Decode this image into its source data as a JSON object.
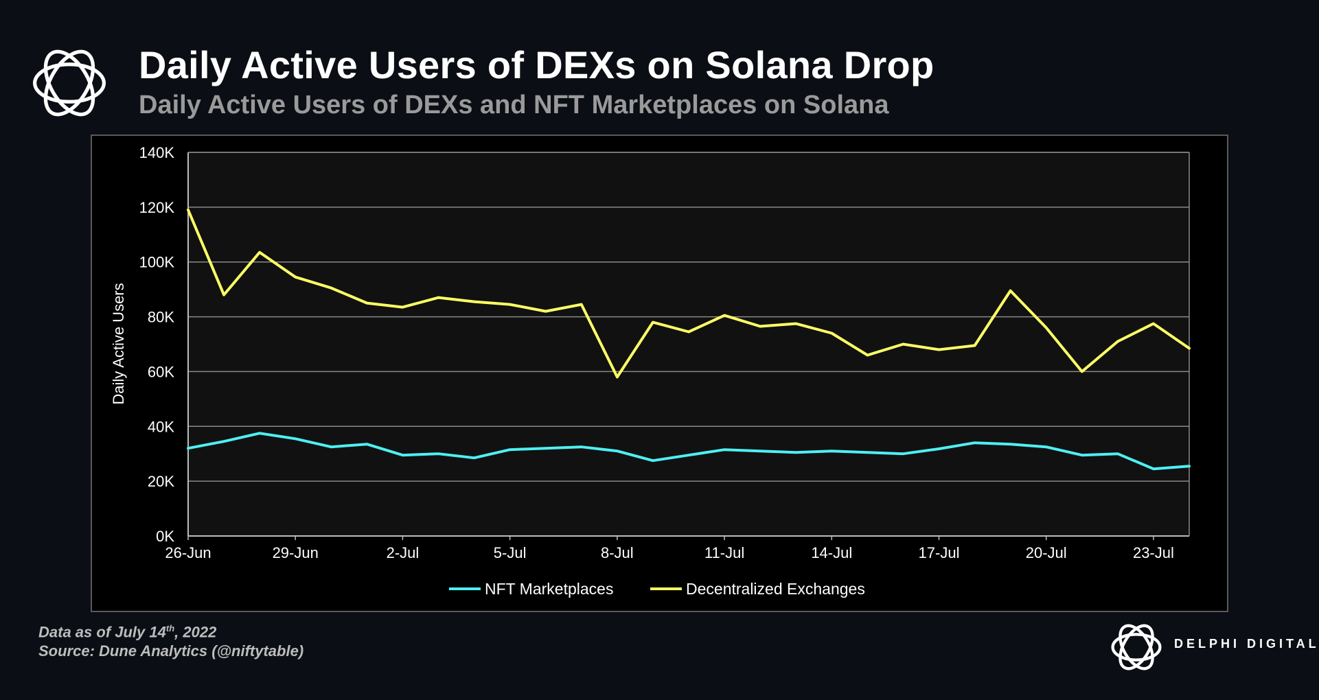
{
  "header": {
    "title": "Daily Active Users of DEXs on Solana Drop",
    "subtitle": "Daily Active Users of DEXs and NFT Marketplaces on Solana"
  },
  "footnote": {
    "data_as_of_prefix": "Data as of July 14",
    "data_as_of_sup": "th",
    "data_as_of_suffix": ", 2022",
    "source": "Source: Dune Analytics (@niftytable)"
  },
  "brand": {
    "name": "DELPHI DIGITAL",
    "logo_icon": "delphi-knot-icon"
  },
  "colors": {
    "background": "#0b0e14",
    "plot_bg": "#111111",
    "nft_line": "#4ef0f2",
    "dex_line": "#ffff66",
    "grid": "#8a8a8a"
  },
  "chart_data": {
    "type": "line",
    "title": "Daily Active Users of DEXs on Solana Drop",
    "subtitle": "Daily Active Users of DEXs and NFT Marketplaces on Solana",
    "xlabel": "",
    "ylabel": "Daily Active Users",
    "ylim": [
      0,
      140000
    ],
    "yticks": [
      0,
      20000,
      40000,
      60000,
      80000,
      100000,
      120000,
      140000
    ],
    "ytick_labels": [
      "0K",
      "20K",
      "40K",
      "60K",
      "80K",
      "100K",
      "120K",
      "140K"
    ],
    "x": [
      "26-Jun",
      "27-Jun",
      "28-Jun",
      "29-Jun",
      "30-Jun",
      "1-Jul",
      "2-Jul",
      "3-Jul",
      "4-Jul",
      "5-Jul",
      "6-Jul",
      "7-Jul",
      "8-Jul",
      "9-Jul",
      "10-Jul",
      "11-Jul",
      "12-Jul",
      "13-Jul",
      "14-Jul",
      "15-Jul",
      "16-Jul",
      "17-Jul",
      "18-Jul",
      "19-Jul",
      "20-Jul",
      "21-Jul",
      "22-Jul",
      "23-Jul",
      "24-Jul"
    ],
    "xtick_indices": [
      0,
      3,
      6,
      9,
      12,
      15,
      18,
      21,
      24,
      27
    ],
    "xtick_labels": [
      "26-Jun",
      "29-Jun",
      "2-Jul",
      "5-Jul",
      "8-Jul",
      "11-Jul",
      "14-Jul",
      "17-Jul",
      "20-Jul",
      "23-Jul"
    ],
    "grid": true,
    "legend_position": "bottom-center",
    "series": [
      {
        "name": "NFT Marketplaces",
        "color": "#4ef0f2",
        "values": [
          32000,
          34500,
          37500,
          35500,
          32500,
          33500,
          29500,
          30000,
          28500,
          31500,
          32000,
          32500,
          31000,
          27500,
          29500,
          31500,
          31000,
          30500,
          31000,
          30500,
          30000,
          31800,
          34000,
          33500,
          32500,
          29500,
          30000,
          24500,
          25500
        ]
      },
      {
        "name": "Decentralized Exchanges",
        "color": "#ffff66",
        "values": [
          119000,
          88000,
          103500,
          94500,
          90500,
          85000,
          83500,
          87000,
          85500,
          84500,
          82000,
          84500,
          58000,
          78000,
          74500,
          80500,
          76500,
          77500,
          74000,
          66000,
          70000,
          68000,
          69500,
          89500,
          76000,
          60000,
          71000,
          77500,
          68500
        ]
      }
    ]
  }
}
